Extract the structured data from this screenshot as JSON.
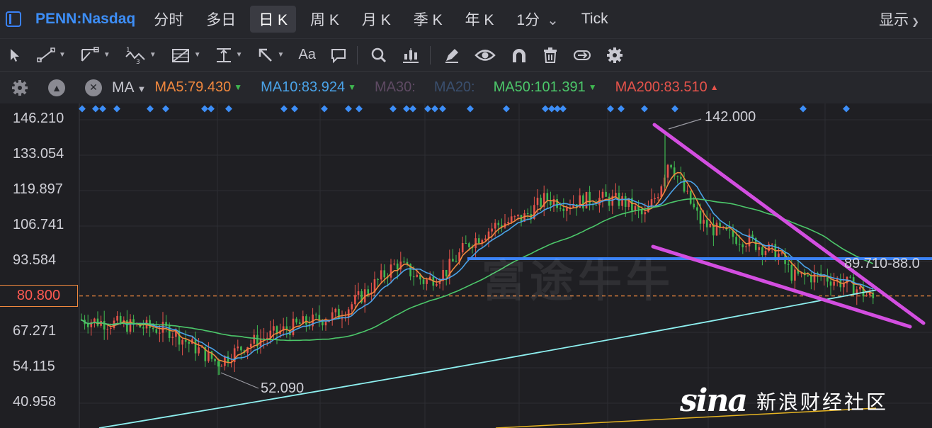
{
  "header": {
    "ticker": "PENN:Nasdaq",
    "tabs": [
      {
        "label": "分时",
        "active": false
      },
      {
        "label": "多日",
        "active": false
      },
      {
        "label": "日 K",
        "active": true
      },
      {
        "label": "周 K",
        "active": false
      },
      {
        "label": "月 K",
        "active": false
      },
      {
        "label": "季 K",
        "active": false
      },
      {
        "label": "年 K",
        "active": false
      },
      {
        "label": "1分",
        "active": false,
        "dropdown": true
      },
      {
        "label": "Tick",
        "active": false
      }
    ],
    "display_label": "显示"
  },
  "toolbar": {
    "tools": [
      "cursor-arrow-icon",
      "line-tool-icon",
      "channel-tool-icon",
      "wave-tool-icon",
      "fibonacci-tool-icon",
      "horizontal-line-icon",
      "arrow-tool-icon",
      "text-tool-icon",
      "comment-tool-icon",
      "search-icon",
      "candle-icon",
      "pen-icon",
      "eye-icon",
      "magnet-icon",
      "trash-icon",
      "sync-icon",
      "gear-icon"
    ],
    "text_tool_label": "Aa"
  },
  "ma_bar": {
    "type_label": "MA",
    "items": [
      {
        "label": "MA5:79.430",
        "color": "#f0883e",
        "arrow": "▼",
        "arrow_color": "#3fb950"
      },
      {
        "label": "MA10:83.924",
        "color": "#4aa3e8",
        "arrow": "▼",
        "arrow_color": "#3fb950"
      },
      {
        "label": "MA30:",
        "color": "#5e4a63",
        "arrow": "",
        "arrow_color": ""
      },
      {
        "label": "MA20:",
        "color": "#3a4f6e",
        "arrow": "",
        "arrow_color": ""
      },
      {
        "label": "MA50:101.391",
        "color": "#4cc76a",
        "arrow": "▼",
        "arrow_color": "#3fb950"
      },
      {
        "label": "MA200:83.510",
        "color": "#e5534b",
        "arrow": "▲",
        "arrow_color": "#e5534b"
      }
    ]
  },
  "price_axis": [
    "146.210",
    "133.054",
    "119.897",
    "106.741",
    "93.584",
    "80.800",
    "67.271",
    "54.115",
    "40.958"
  ],
  "current_price": "80.800",
  "annotations": {
    "high": "142.000",
    "low": "52.090",
    "range_label": "89.710-88.0"
  },
  "watermark": "富途牛牛",
  "sina": {
    "logo": "sina",
    "text": "新浪财经社区"
  },
  "colors": {
    "background": "#1f1f23",
    "up": "#e5534b",
    "down": "#3fb950",
    "ma5": "#f0883e",
    "ma10": "#4aa3e8",
    "ma50": "#4cc76a",
    "ma200": "#8ef0f0",
    "trend_line": "#d34ee0",
    "support_line": "#3b82f6"
  },
  "chart_data": {
    "type": "candlestick",
    "ylim": [
      35,
      153
    ],
    "series": [
      {
        "name": "MA5"
      },
      {
        "name": "MA10"
      },
      {
        "name": "MA50"
      },
      {
        "name": "MA200"
      }
    ],
    "current_price": 80.8,
    "high": 142.0,
    "low": 52.09
  }
}
